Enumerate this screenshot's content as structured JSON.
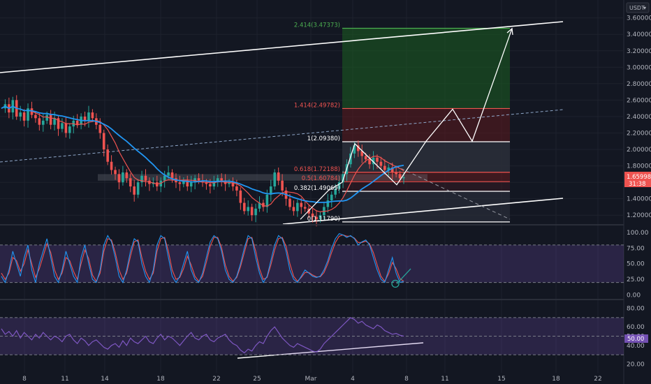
{
  "header": {
    "currency_label": "USDT",
    "currency_caret": "▾"
  },
  "chart_data": {
    "type": "candlestick",
    "price_axis": {
      "ticks": [
        "3.60000",
        "3.40000",
        "3.20000",
        "3.00000",
        "2.80000",
        "2.60000",
        "2.40000",
        "2.20000",
        "2.00000",
        "1.80000",
        "1.60000",
        "1.40000",
        "1.20000"
      ],
      "range": [
        1.1,
        3.75
      ],
      "current_price": "1.65998",
      "countdown": "31:38"
    },
    "time_axis": {
      "ticks": [
        "8",
        "11",
        "14",
        "18",
        "22",
        "25",
        "Mar",
        "4",
        "8",
        "11",
        "15",
        "18",
        "22"
      ]
    },
    "fib_levels": [
      {
        "label": "2.414(3.47373)",
        "value": 3.47373,
        "color": "#4caf50"
      },
      {
        "label": "1.414(2.49782)",
        "value": 2.49782,
        "color": "#ef5350"
      },
      {
        "label": "1(2.09380)",
        "value": 2.0938,
        "color": "#ffffff"
      },
      {
        "label": "0.618(1.72188)",
        "value": 1.72188,
        "color": "#ef5350"
      },
      {
        "label": "0.5(1.60784)",
        "value": 1.60784,
        "color": "#ef5350"
      },
      {
        "label": "0.382(1.49069)",
        "value": 1.49069,
        "color": "#ffffff"
      },
      {
        "label": "0(1.11790)",
        "value": 1.1179,
        "color": "#ffffff"
      }
    ],
    "price_series": [
      2.5,
      2.55,
      2.45,
      2.6,
      2.4,
      2.45,
      2.35,
      2.5,
      2.42,
      2.38,
      2.3,
      2.35,
      2.42,
      2.3,
      2.38,
      2.25,
      2.32,
      2.2,
      2.28,
      2.35,
      2.3,
      2.4,
      2.35,
      2.45,
      2.38,
      2.3,
      2.2,
      2.0,
      1.85,
      1.75,
      1.7,
      1.6,
      1.72,
      1.65,
      1.55,
      1.45,
      1.6,
      1.68,
      1.62,
      1.58,
      1.6,
      1.55,
      1.62,
      1.68,
      1.72,
      1.65,
      1.6,
      1.58,
      1.62,
      1.55,
      1.6,
      1.65,
      1.62,
      1.6,
      1.58,
      1.55,
      1.6,
      1.65,
      1.62,
      1.58,
      1.6,
      1.55,
      1.5,
      1.35,
      1.25,
      1.3,
      1.2,
      1.28,
      1.35,
      1.3,
      1.45,
      1.55,
      1.72,
      1.62,
      1.5,
      1.4,
      1.3,
      1.25,
      1.35,
      1.3,
      1.28,
      1.22,
      1.18,
      1.15,
      1.2,
      1.3,
      1.38,
      1.45,
      1.52,
      1.6,
      1.7,
      1.82,
      1.95,
      2.05,
      1.98,
      1.92,
      1.88,
      1.82,
      1.9,
      1.85,
      1.8,
      1.75,
      1.78,
      1.72,
      1.7,
      1.65,
      1.66
    ],
    "stoch_axis": {
      "ticks": [
        "100.00",
        "75.00",
        "50.00",
        "25.00",
        "0.00"
      ],
      "range": [
        -5,
        110
      ]
    },
    "stoch_k": [
      30,
      20,
      40,
      70,
      50,
      30,
      60,
      80,
      40,
      20,
      50,
      70,
      90,
      60,
      30,
      20,
      40,
      70,
      50,
      30,
      20,
      60,
      80,
      50,
      25,
      20,
      40,
      80,
      95,
      85,
      60,
      30,
      20,
      40,
      70,
      90,
      85,
      50,
      30,
      20,
      40,
      80,
      95,
      90,
      60,
      30,
      20,
      30,
      50,
      70,
      40,
      25,
      20,
      35,
      60,
      85,
      95,
      90,
      70,
      40,
      25,
      20,
      30,
      50,
      75,
      95,
      90,
      60,
      35,
      20,
      30,
      55,
      80,
      95,
      90,
      70,
      40,
      25,
      20,
      30,
      40,
      35,
      30,
      28,
      30,
      40,
      55,
      75,
      90,
      98,
      96,
      92,
      95,
      90,
      80,
      85,
      88,
      80,
      60,
      40,
      25,
      20,
      40,
      60,
      35,
      20,
      22
    ],
    "stoch_d": [
      35,
      25,
      35,
      60,
      55,
      38,
      50,
      72,
      50,
      28,
      42,
      62,
      82,
      68,
      40,
      25,
      35,
      60,
      55,
      38,
      25,
      50,
      72,
      58,
      32,
      22,
      35,
      70,
      90,
      88,
      68,
      40,
      25,
      35,
      62,
      85,
      88,
      60,
      38,
      25,
      35,
      70,
      90,
      92,
      70,
      40,
      25,
      28,
      42,
      62,
      48,
      30,
      22,
      30,
      52,
      78,
      92,
      92,
      76,
      48,
      30,
      22,
      28,
      45,
      68,
      90,
      92,
      70,
      42,
      25,
      28,
      48,
      72,
      90,
      92,
      78,
      50,
      30,
      22,
      28,
      36,
      36,
      32,
      29,
      29,
      36,
      50,
      68,
      84,
      94,
      96,
      94,
      94,
      91,
      84,
      84,
      86,
      82,
      68,
      48,
      30,
      22,
      34,
      52,
      42,
      26,
      22
    ],
    "rsi_axis": {
      "ticks": [
        "80.00",
        "60.00",
        "50.00",
        "40.00",
        "20.00"
      ],
      "range": [
        15,
        88
      ],
      "current": "50.00"
    },
    "rsi_series": [
      58,
      52,
      55,
      50,
      56,
      48,
      54,
      50,
      46,
      52,
      48,
      54,
      50,
      46,
      50,
      48,
      44,
      50,
      52,
      46,
      42,
      48,
      45,
      40,
      44,
      46,
      42,
      38,
      36,
      40,
      42,
      38,
      45,
      40,
      48,
      44,
      42,
      46,
      50,
      44,
      42,
      48,
      52,
      46,
      50,
      48,
      44,
      40,
      45,
      50,
      54,
      48,
      46,
      50,
      52,
      46,
      44,
      48,
      50,
      52,
      46,
      42,
      40,
      35,
      32,
      36,
      34,
      40,
      44,
      42,
      50,
      56,
      60,
      54,
      48,
      44,
      40,
      38,
      42,
      40,
      38,
      36,
      34,
      33,
      36,
      42,
      46,
      50,
      54,
      58,
      62,
      66,
      70,
      68,
      64,
      66,
      62,
      60,
      58,
      62,
      60,
      56,
      54,
      52,
      53,
      51,
      50
    ]
  }
}
